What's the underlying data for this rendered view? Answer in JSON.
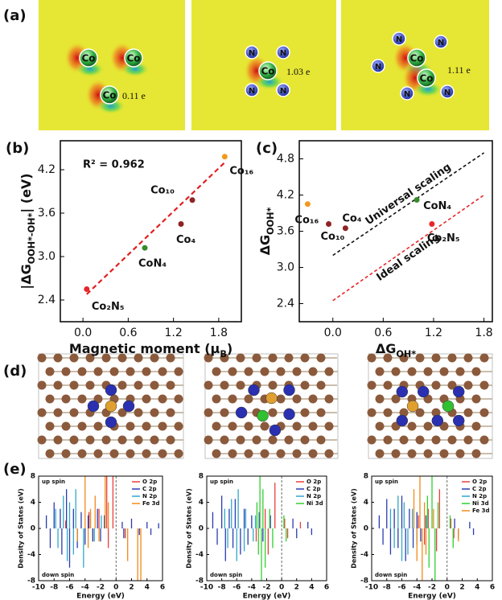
{
  "panel_a": {
    "label": "(a)",
    "images": [
      {
        "atoms": [
          "Co",
          "Co",
          "Co"
        ],
        "charge": "0.11 e"
      },
      {
        "atoms": [
          "N",
          "N",
          "Co",
          "N",
          "N"
        ],
        "charge": "1.03 e"
      },
      {
        "atoms": [
          "N",
          "N",
          "N",
          "Co",
          "Co",
          "N",
          "N"
        ],
        "charge": "1.11 e"
      }
    ]
  },
  "panel_d": {
    "label": "(d)"
  },
  "chart_data": [
    {
      "type": "scatter",
      "label": "(b)",
      "annotation": "R² = 0.962",
      "x_label_parts": [
        "Magnetic moment (μ",
        "B",
        ")"
      ],
      "y_label_parts": [
        "|ΔG",
        "OOH*-OH*",
        "| (eV)"
      ],
      "xlim": [
        -0.3,
        2.1
      ],
      "ylim": [
        2.1,
        4.6
      ],
      "xticks": [
        {
          "value": 0,
          "label": "0.0"
        },
        0.6,
        1.2,
        1.8
      ],
      "yticks": [
        2.4,
        {
          "value": 3,
          "label": "3.0"
        },
        3.6,
        4.2
      ],
      "series": [
        {
          "name": "Co₂N₅",
          "color": "#e8262a",
          "x": [
            0.05
          ],
          "values": [
            2.55
          ]
        },
        {
          "name": "CoN₄",
          "color": "#3a8a2e",
          "x": [
            0.82
          ],
          "values": [
            3.12
          ]
        },
        {
          "name": "Co₄",
          "color": "#8e2424",
          "x": [
            1.3
          ],
          "values": [
            3.45
          ]
        },
        {
          "name": "Co₁₀",
          "color": "#8e2424",
          "x": [
            1.45
          ],
          "values": [
            3.78
          ]
        },
        {
          "name": "Co₁₆",
          "color": "#f29a1e",
          "x": [
            1.88
          ],
          "values": [
            4.38
          ]
        }
      ],
      "fit_line": {
        "color": "#e02020",
        "x": [
          0.05,
          1.88
        ],
        "values": [
          2.48,
          4.3
        ]
      }
    },
    {
      "type": "scatter",
      "label": "(c)",
      "x_label_parts": [
        "ΔG",
        "OH*"
      ],
      "y_label_parts": [
        "ΔG",
        "OOH*"
      ],
      "xlim": [
        -0.4,
        1.9
      ],
      "ylim": [
        2.1,
        5.1
      ],
      "xticks": [
        {
          "value": 0,
          "label": "0.0"
        },
        0.6,
        1.2,
        1.8
      ],
      "yticks": [
        2.4,
        {
          "value": 3,
          "label": "3.0"
        },
        3.6,
        4.2,
        4.8
      ],
      "series": [
        {
          "name": "Co₁₆",
          "color": "#f29a1e",
          "x": [
            -0.3
          ],
          "values": [
            4.05
          ]
        },
        {
          "name": "Co₁₀",
          "color": "#8e2424",
          "x": [
            -0.05
          ],
          "values": [
            3.72
          ]
        },
        {
          "name": "Co₄",
          "color": "#8e2424",
          "x": [
            0.15
          ],
          "values": [
            3.65
          ]
        },
        {
          "name": "CoN₄",
          "color": "#3a8a2e",
          "x": [
            1.0
          ],
          "values": [
            4.12
          ]
        },
        {
          "name": "Co₂N₅",
          "color": "#e8262a",
          "x": [
            1.18
          ],
          "values": [
            3.72
          ]
        }
      ],
      "lines": [
        {
          "name": "Universal scaling",
          "color": "#111111",
          "x": [
            0,
            1.8
          ],
          "values": [
            3.2,
            4.9
          ]
        },
        {
          "name": "Ideal scaling",
          "color": "#e8262a",
          "x": [
            0,
            1.8
          ],
          "values": [
            2.45,
            4.2
          ]
        }
      ]
    },
    {
      "type": "dos",
      "label": "(e)",
      "up_label": "up spin",
      "down_label": "down spin",
      "x_label": "Energy (eV)",
      "y_label": "Density of States (eV)",
      "xlim": [
        -10,
        6
      ],
      "ylim": [
        -8,
        8
      ],
      "xticks": [
        -10,
        -8,
        -6,
        -4,
        -2,
        0,
        2,
        4,
        6
      ],
      "yticks": [
        -8,
        -4,
        0,
        4,
        8
      ],
      "series": [
        {
          "name": "O 2p",
          "color": "#e8403a",
          "x": [
            -6.5,
            -3.5,
            -2.2,
            -1.2,
            -0.4,
            -3.0,
            -1.0,
            1.2,
            3.0
          ],
          "values": [
            1.2,
            2.5,
            3,
            8,
            8,
            -2,
            -3,
            -1.5,
            -1
          ]
        },
        {
          "name": "C 2p",
          "color": "#2b3bb0",
          "x": [
            -9,
            -8,
            -7.2,
            -6.4,
            -5.5,
            -4.5,
            -3.6,
            -2.4,
            -1.5,
            0.8,
            2,
            4,
            5.5,
            -8.5,
            -7,
            -6,
            -5,
            -4,
            -3,
            -2,
            1,
            3,
            4.5
          ],
          "values": [
            2,
            4,
            3,
            6,
            3,
            2.5,
            2,
            3,
            2,
            1,
            1.5,
            1,
            0.8,
            -3,
            -4,
            -6,
            -3,
            -2.5,
            -2,
            -2,
            -1.5,
            -1,
            -1
          ]
        },
        {
          "name": "N 2p",
          "color": "#2fa8c8",
          "x": [
            -7.8,
            -6.8,
            -6,
            -5.2,
            -3.3,
            -1.9,
            -7.5,
            -6.3,
            -5.5,
            -4.2,
            -2.8
          ],
          "values": [
            3,
            5,
            4,
            6,
            2.5,
            2,
            -3,
            -5,
            -4,
            -6,
            -2
          ]
        },
        {
          "name": "Fe 3d",
          "color": "#f08a1a",
          "x": [
            -4,
            -3.3,
            -2.7,
            -1.4,
            -1,
            1.5,
            2.8,
            3.2,
            -5,
            -3.6,
            -2.2
          ],
          "values": [
            8,
            3,
            5,
            8,
            4,
            -5,
            -8,
            -8,
            -2,
            -3,
            -2
          ]
        }
      ]
    },
    {
      "type": "dos",
      "up_label": "up spin",
      "down_label": "down spin",
      "x_label": "Energy (eV)",
      "y_label": "Density of States (eV)",
      "xlim": [
        -10,
        6
      ],
      "ylim": [
        -8,
        8
      ],
      "xticks": [
        -10,
        -8,
        -6,
        -4,
        -2,
        0,
        2,
        4,
        6
      ],
      "yticks": [
        -8,
        -4,
        0,
        4,
        8
      ],
      "series": [
        {
          "name": "O 2p",
          "color": "#e8403a",
          "x": [
            -3,
            -2.2,
            -0.9,
            0.4,
            2.5,
            -3.4,
            -1.8,
            0.8
          ],
          "values": [
            2,
            3,
            7,
            1.5,
            1,
            -2,
            -4,
            -1.5
          ]
        },
        {
          "name": "C 2p",
          "color": "#2b3bb0",
          "x": [
            -9.2,
            -8,
            -7,
            -6.2,
            -5,
            -4,
            -3,
            -1.5,
            1.5,
            3.5,
            -8.6,
            -7.5,
            -6.5,
            -5.5,
            -4.5,
            -2.5,
            2,
            4
          ],
          "values": [
            2.5,
            5,
            3,
            4.5,
            3,
            2,
            2.5,
            2,
            1.5,
            1,
            -2.5,
            -5,
            -3,
            -4,
            -2.5,
            -2,
            -1.5,
            -1
          ]
        },
        {
          "name": "N 2p",
          "color": "#2fa8c8",
          "x": [
            -7.6,
            -6.7,
            -5.8,
            -4.8,
            -3.5,
            -7.2,
            -6,
            -5,
            -3.8
          ],
          "values": [
            3,
            4.5,
            6,
            3,
            2,
            -3,
            -5,
            -3.5,
            -2
          ]
        },
        {
          "name": "Ni 3d",
          "color": "#30d030",
          "x": [
            -3.3,
            -2.9,
            -2.5,
            -1.6,
            0.3,
            -3.1,
            -2.7,
            -2.2,
            -1.2,
            0.6
          ],
          "values": [
            4,
            8,
            6,
            3,
            2,
            -4,
            -8,
            -6,
            -3,
            -2
          ]
        }
      ]
    },
    {
      "type": "dos",
      "up_label": "up spin",
      "down_label": "down spin",
      "x_label": "Energy (eV)",
      "y_label": "Density of States (eV)",
      "xlim": [
        -10,
        6
      ],
      "ylim": [
        -8,
        8
      ],
      "xticks": [
        -10,
        -8,
        -6,
        -4,
        -2,
        0,
        2,
        4,
        6
      ],
      "yticks": [
        -8,
        -4,
        0,
        4,
        8
      ],
      "series": [
        {
          "name": "O 2p",
          "color": "#e8403a",
          "x": [
            -3.8,
            -2.5,
            -1,
            0.5,
            -3,
            -1.4,
            0.9
          ],
          "values": [
            2,
            3,
            6,
            1.5,
            -2.5,
            -3.5,
            -1.5
          ]
        },
        {
          "name": "C 2p",
          "color": "#2b3bb0",
          "x": [
            -9,
            -8,
            -7,
            -6,
            -5,
            -4,
            -2.8,
            1,
            3,
            -8.5,
            -7.5,
            -6.5,
            -5.5,
            -4.5,
            -3.5,
            1.5,
            3.5
          ],
          "values": [
            2,
            4.5,
            3,
            5,
            3,
            2.5,
            2,
            1.5,
            1,
            -2.5,
            -4,
            -3,
            -5,
            -3,
            -2,
            -1.5,
            -1
          ]
        },
        {
          "name": "N 2p",
          "color": "#2fa8c8",
          "x": [
            -7.5,
            -6.5,
            -5.7,
            -4.6,
            -7,
            -6,
            -5.2,
            -4
          ],
          "values": [
            3,
            5,
            4,
            3,
            -3,
            -5,
            -4,
            -2.5
          ]
        },
        {
          "name": "Ni 3d",
          "color": "#30d030",
          "x": [
            -2.6,
            -2,
            -1.2,
            0.4,
            -2.4,
            -1.6,
            0.8
          ],
          "values": [
            5,
            8,
            4,
            2,
            -6,
            -8,
            -3
          ]
        },
        {
          "name": "Fe 3d",
          "color": "#f08a1a",
          "x": [
            -4.4,
            -3.6,
            -3,
            -1.8,
            -4,
            -3.3,
            -2.8,
            1.5
          ],
          "values": [
            6,
            8,
            4,
            3,
            -5,
            -8,
            -4,
            -2
          ]
        }
      ]
    }
  ]
}
